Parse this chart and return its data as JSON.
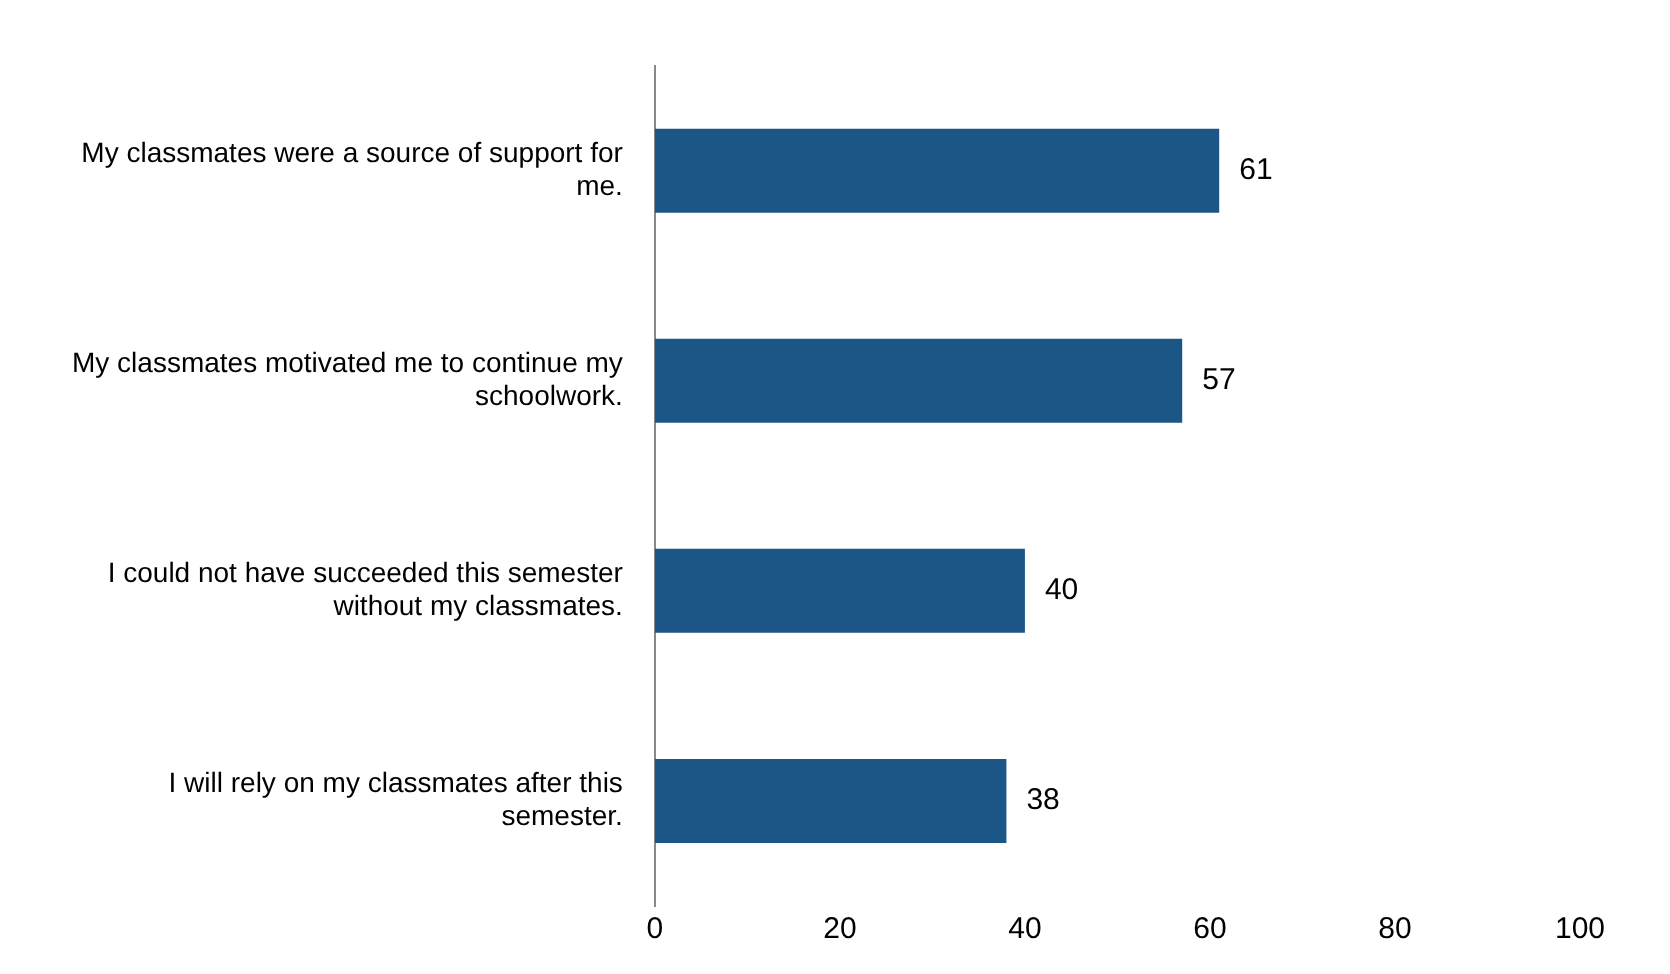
{
  "chart_data": {
    "type": "bar",
    "orientation": "horizontal",
    "categories": [
      "My classmates were a source of support for me.",
      "My classmates motivated me to continue my schoolwork.",
      "I could not have succeeded this semester without my classmates.",
      "I will rely on my classmates after this semester."
    ],
    "values": [
      61,
      57,
      40,
      38
    ],
    "color": "#1b5687",
    "xlim": [
      0,
      100
    ],
    "xticks": [
      0,
      20,
      40,
      60,
      80,
      100
    ],
    "data_labels": true,
    "grid": false,
    "legend": false
  }
}
